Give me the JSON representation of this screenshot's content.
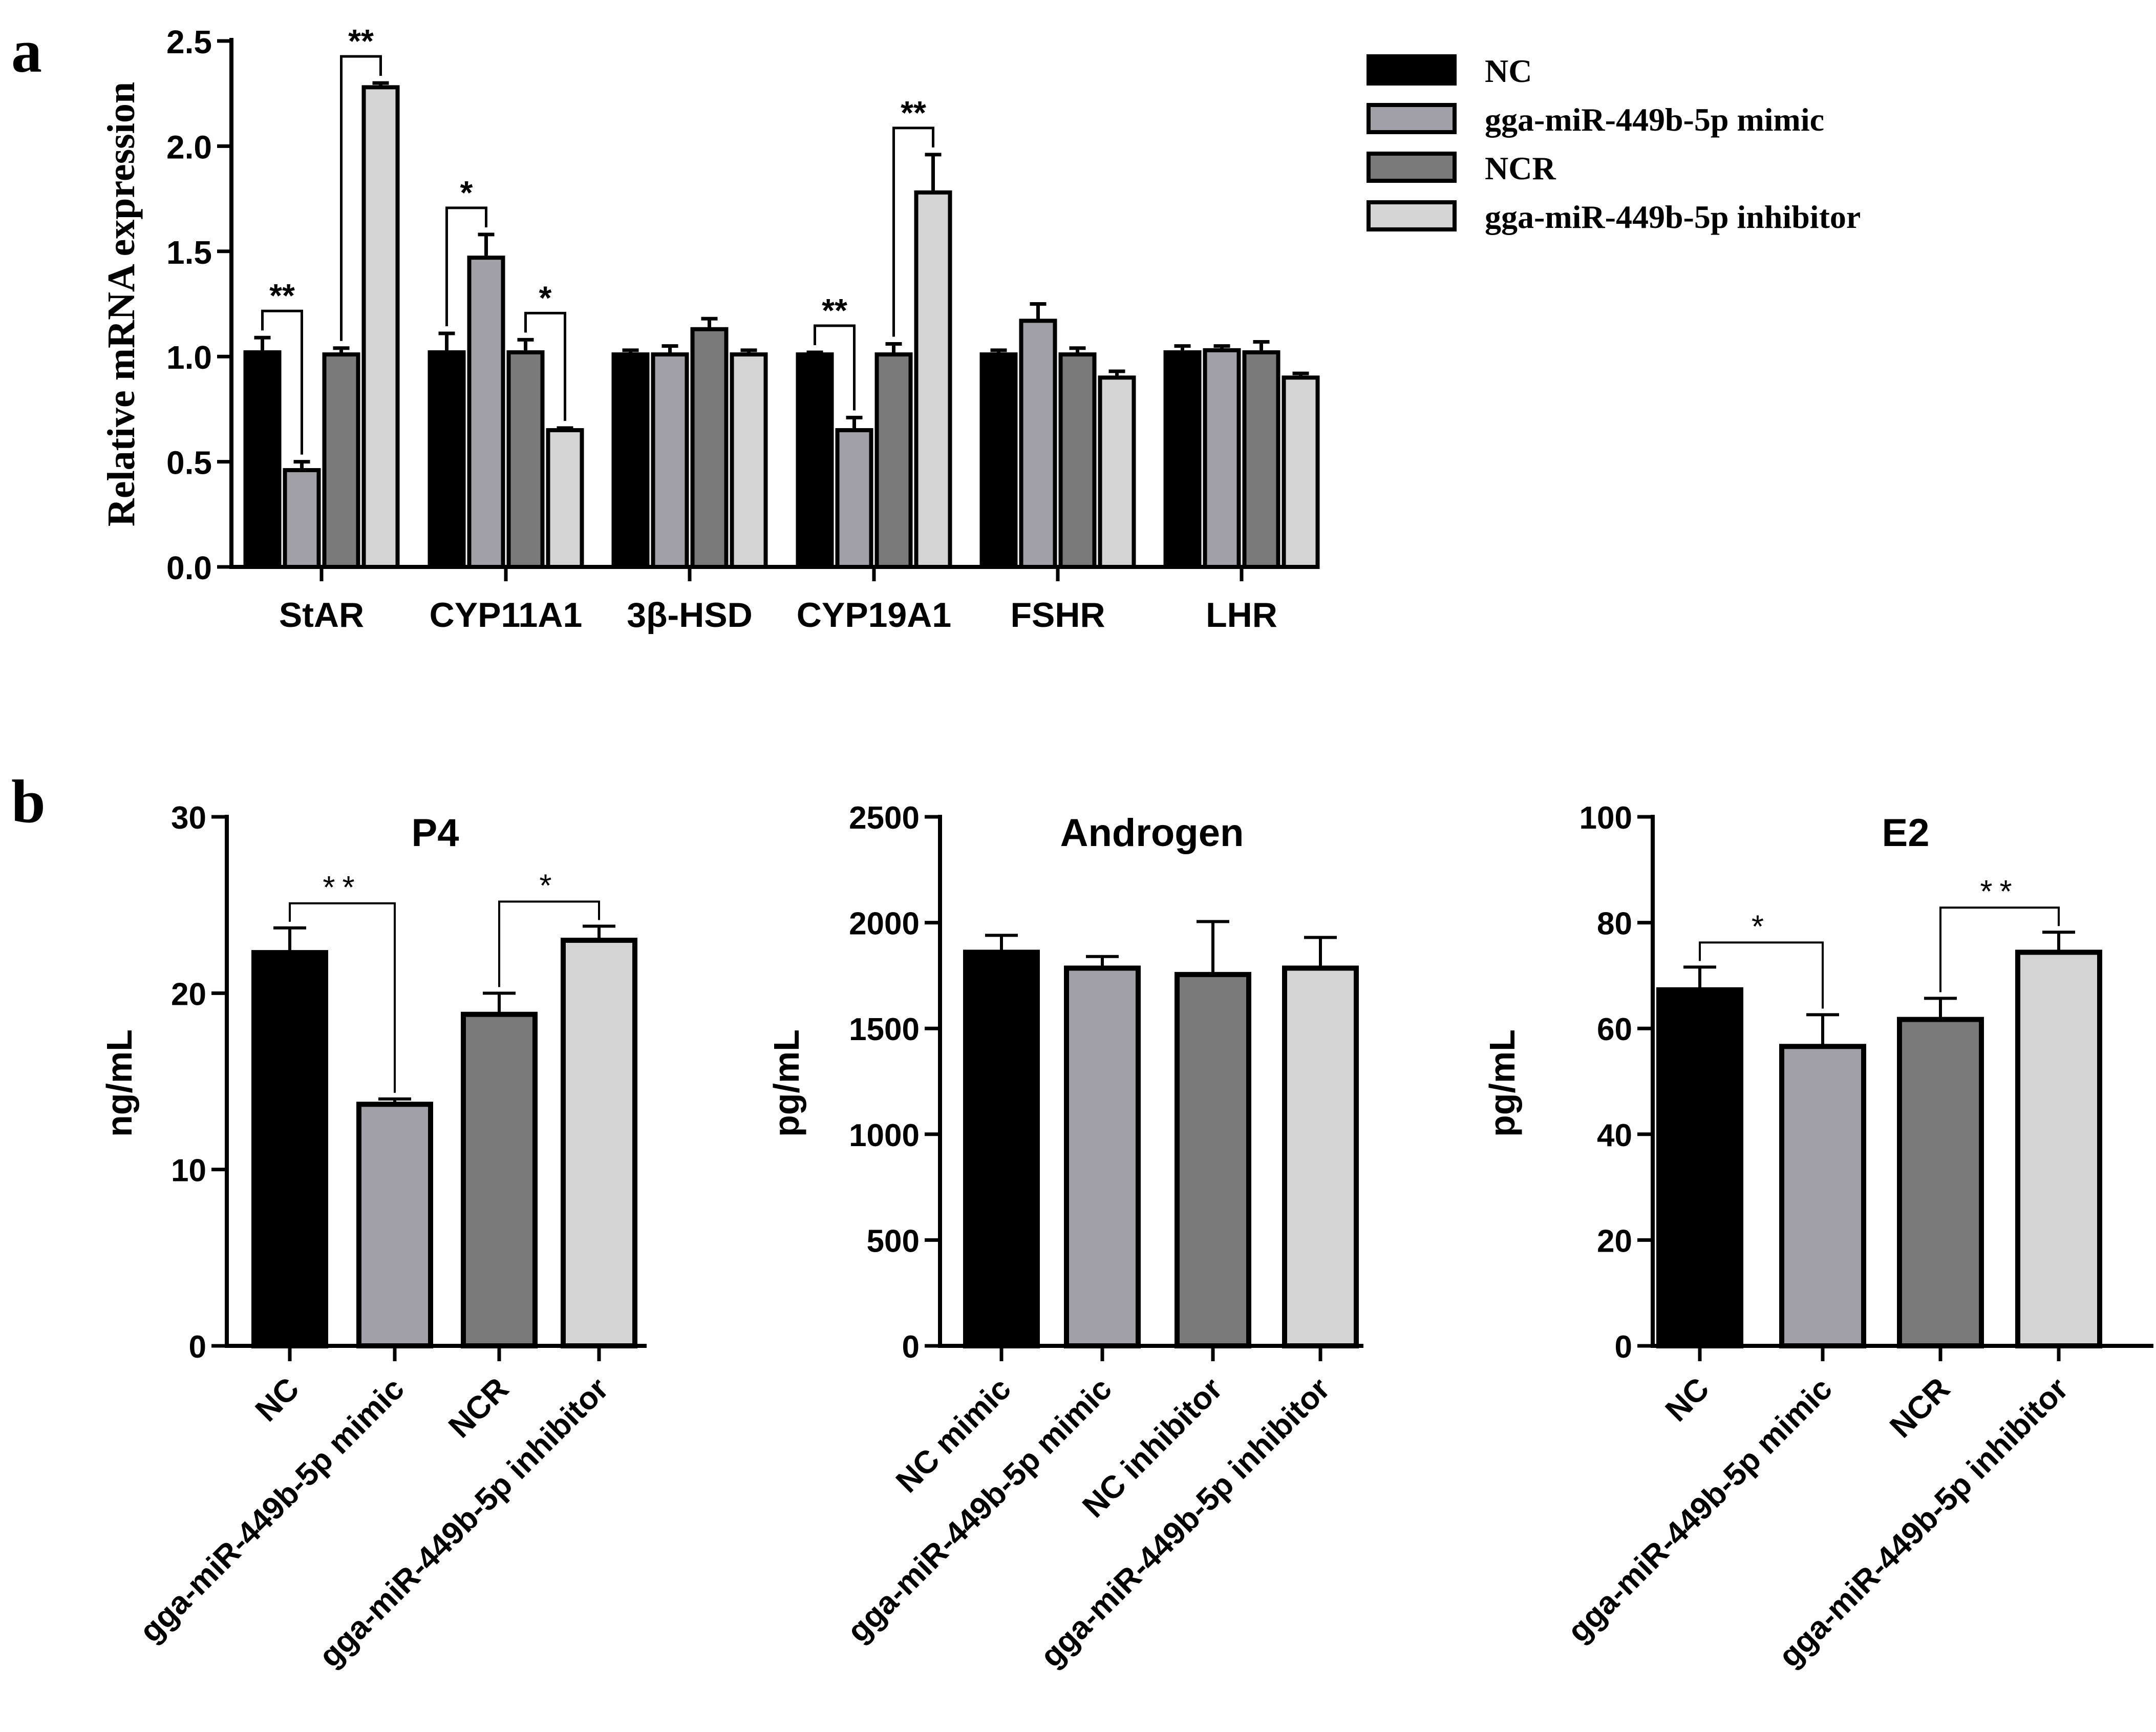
{
  "panel_labels": {
    "a": "a",
    "b": "b"
  },
  "colors": {
    "NC": "#000000",
    "mimic": "#a0a0a6",
    "NCR": "#7a7a7a",
    "inhibitor": "#d4d4d4"
  },
  "chart_data": [
    {
      "id": "a",
      "type": "bar",
      "title": "",
      "xlabel": "",
      "ylabel": "Relative mRNA expression",
      "ylim": [
        0,
        2.5
      ],
      "yticks": [
        "0.0",
        "0.5",
        "1.0",
        "1.5",
        "2.0",
        "2.5"
      ],
      "categories": [
        "StAR",
        "CYP11A1",
        "3β-HSD",
        "CYP19A1",
        "FSHR",
        "LHR"
      ],
      "legend": [
        "NC",
        "gga-miR-449b-5p mimic",
        "NCR",
        "gga-miR-449b-5p inhibitor"
      ],
      "legend_position": "top-right",
      "series": [
        {
          "name": "NC",
          "values": [
            1.02,
            1.02,
            1.01,
            1.01,
            1.01,
            1.02
          ],
          "errors": [
            0.07,
            0.09,
            0.02,
            0.01,
            0.02,
            0.03
          ]
        },
        {
          "name": "gga-miR-449b-5p mimic",
          "values": [
            0.46,
            1.47,
            1.01,
            0.65,
            1.17,
            1.03
          ],
          "errors": [
            0.04,
            0.11,
            0.04,
            0.06,
            0.08,
            0.02
          ]
        },
        {
          "name": "NCR",
          "values": [
            1.01,
            1.02,
            1.13,
            1.01,
            1.01,
            1.02
          ],
          "errors": [
            0.03,
            0.06,
            0.05,
            0.05,
            0.03,
            0.05
          ]
        },
        {
          "name": "gga-miR-449b-5p inhibitor",
          "values": [
            2.28,
            0.65,
            1.01,
            1.78,
            0.9,
            0.9
          ],
          "errors": [
            0.02,
            0.01,
            0.02,
            0.18,
            0.03,
            0.02
          ]
        }
      ],
      "annotations": [
        {
          "category": 0,
          "from": 0,
          "to": 1,
          "label": "**"
        },
        {
          "category": 0,
          "from": 2,
          "to": 3,
          "label": "**"
        },
        {
          "category": 1,
          "from": 0,
          "to": 1,
          "label": "*"
        },
        {
          "category": 1,
          "from": 2,
          "to": 3,
          "label": "*"
        },
        {
          "category": 3,
          "from": 0,
          "to": 1,
          "label": "**"
        },
        {
          "category": 3,
          "from": 2,
          "to": 3,
          "label": "**"
        }
      ]
    },
    {
      "id": "b-p4",
      "type": "bar",
      "title": "P4",
      "xlabel": "",
      "ylabel": "ng/mL",
      "ylim": [
        0,
        30
      ],
      "yticks": [
        "0",
        "10",
        "20",
        "30"
      ],
      "categories": [
        "NC",
        "gga-miR-449b-5p mimic",
        "NCR",
        "gga-miR-449b-5p inhibitor"
      ],
      "values": [
        22.3,
        13.7,
        18.8,
        23.0
      ],
      "errors": [
        1.4,
        0.3,
        1.2,
        0.8
      ],
      "annotations": [
        {
          "from": 0,
          "to": 1,
          "label": "**"
        },
        {
          "from": 2,
          "to": 3,
          "label": "*"
        }
      ]
    },
    {
      "id": "b-androgen",
      "type": "bar",
      "title": "Androgen",
      "xlabel": "",
      "ylabel": "pg/mL",
      "ylim": [
        0,
        2500
      ],
      "yticks": [
        "0",
        "500",
        "1000",
        "1500",
        "2000",
        "2500"
      ],
      "categories": [
        "NC mimic",
        "gga-miR-449b-5p mimic",
        "NC inhibitor",
        "gga-miR-449b-5p inhibitor"
      ],
      "values": [
        1860,
        1785,
        1755,
        1785
      ],
      "errors": [
        80,
        55,
        250,
        145
      ],
      "annotations": []
    },
    {
      "id": "b-e2",
      "type": "bar",
      "title": "E2",
      "xlabel": "",
      "ylabel": "pg/mL",
      "ylim": [
        0,
        100
      ],
      "yticks": [
        "0",
        "20",
        "40",
        "60",
        "80",
        "100"
      ],
      "categories": [
        "NC",
        "gga-miR-449b-5p mimic",
        "NCR",
        "gga-miR-449b-5p inhibitor"
      ],
      "values": [
        67.3,
        56.6,
        61.7,
        74.4
      ],
      "errors": [
        4.3,
        6.0,
        4.0,
        3.8
      ],
      "annotations": [
        {
          "from": 0,
          "to": 1,
          "label": "*"
        },
        {
          "from": 2,
          "to": 3,
          "label": "**"
        }
      ]
    }
  ]
}
